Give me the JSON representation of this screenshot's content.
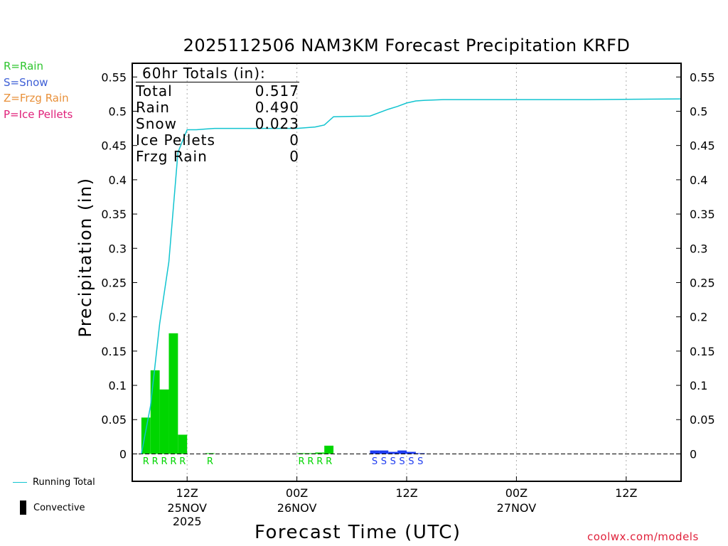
{
  "title": "2025112506 NAM3KM Forecast Precipitation KRFD",
  "credit": "coolwx.com/models",
  "ptype_legend": [
    {
      "label": "R=Rain",
      "color": "#2ec52e"
    },
    {
      "label": "S=Snow",
      "color": "#3e5fd6"
    },
    {
      "label": "Z=Frzg Rain",
      "color": "#e8903a"
    },
    {
      "label": "P=Ice Pellets",
      "color": "#e0207a"
    }
  ],
  "bottom_legend": {
    "running_total": "Running Total",
    "convective": "Convective"
  },
  "totals": {
    "header": "60hr Totals (in):",
    "rows": [
      {
        "label": "Total",
        "value": "0.517"
      },
      {
        "label": "Rain",
        "value": "0.490"
      },
      {
        "label": "Snow",
        "value": "0.023"
      },
      {
        "label": "Ice Pellets",
        "value": "0"
      },
      {
        "label": "Frzg Rain",
        "value": "0"
      }
    ]
  },
  "chart_data": {
    "type": "bar",
    "title": "2025112506 NAM3KM Forecast Precipitation KRFD",
    "xlabel": "Forecast Time (UTC)",
    "ylabel": "Precipitation (in)",
    "ylim": [
      -0.04,
      0.57
    ],
    "xlim_hours": [
      6,
      66
    ],
    "yticks": [
      0,
      0.05,
      0.1,
      0.15,
      0.2,
      0.25,
      0.3,
      0.35,
      0.4,
      0.45,
      0.5,
      0.55
    ],
    "ytick_labels": [
      "0",
      "0.05",
      "0.1",
      "0.15",
      "0.2",
      "0.25",
      "0.3",
      "0.35",
      "0.4",
      "0.45",
      "0.5",
      "0.55"
    ],
    "xticks": [
      {
        "hour": 12,
        "label": "12Z",
        "date": "25NOV",
        "year": "2025"
      },
      {
        "hour": 24,
        "label": "00Z",
        "date": "26NOV",
        "year": ""
      },
      {
        "hour": 36,
        "label": "12Z",
        "date": "",
        "year": ""
      },
      {
        "hour": 48,
        "label": "00Z",
        "date": "27NOV",
        "year": ""
      },
      {
        "hour": 60,
        "label": "12Z",
        "date": "",
        "year": ""
      }
    ],
    "colors": {
      "rain": "#00d600",
      "snow": "#1e3cf0",
      "running_total": "#11c4d0"
    },
    "hourly_bars": [
      {
        "hour": 8,
        "value": 0.053,
        "type": "rain"
      },
      {
        "hour": 9,
        "value": 0.122,
        "type": "rain"
      },
      {
        "hour": 10,
        "value": 0.094,
        "type": "rain"
      },
      {
        "hour": 11,
        "value": 0.176,
        "type": "rain"
      },
      {
        "hour": 12,
        "value": 0.028,
        "type": "rain"
      },
      {
        "hour": 15,
        "value": 0.001,
        "type": "rain"
      },
      {
        "hour": 25,
        "value": 0.001,
        "type": "rain"
      },
      {
        "hour": 26,
        "value": 0.001,
        "type": "rain"
      },
      {
        "hour": 27,
        "value": 0.002,
        "type": "rain"
      },
      {
        "hour": 28,
        "value": 0.012,
        "type": "rain"
      },
      {
        "hour": 33,
        "value": 0.005,
        "type": "snow"
      },
      {
        "hour": 34,
        "value": 0.005,
        "type": "snow"
      },
      {
        "hour": 35,
        "value": 0.003,
        "type": "snow"
      },
      {
        "hour": 36,
        "value": 0.005,
        "type": "snow"
      },
      {
        "hour": 37,
        "value": 0.003,
        "type": "snow"
      },
      {
        "hour": 38,
        "value": 0.001,
        "type": "snow"
      }
    ],
    "ptype_markers": [
      {
        "hour": 8,
        "letter": "R",
        "type": "rain"
      },
      {
        "hour": 9,
        "letter": "R",
        "type": "rain"
      },
      {
        "hour": 10,
        "letter": "R",
        "type": "rain"
      },
      {
        "hour": 11,
        "letter": "R",
        "type": "rain"
      },
      {
        "hour": 12,
        "letter": "R",
        "type": "rain"
      },
      {
        "hour": 15,
        "letter": "R",
        "type": "rain"
      },
      {
        "hour": 25,
        "letter": "R",
        "type": "rain"
      },
      {
        "hour": 26,
        "letter": "R",
        "type": "rain"
      },
      {
        "hour": 27,
        "letter": "R",
        "type": "rain"
      },
      {
        "hour": 28,
        "letter": "R",
        "type": "rain"
      },
      {
        "hour": 33,
        "letter": "S",
        "type": "snow"
      },
      {
        "hour": 34,
        "letter": "S",
        "type": "snow"
      },
      {
        "hour": 35,
        "letter": "S",
        "type": "snow"
      },
      {
        "hour": 36,
        "letter": "S",
        "type": "snow"
      },
      {
        "hour": 37,
        "letter": "S",
        "type": "snow"
      },
      {
        "hour": 38,
        "letter": "S",
        "type": "snow"
      }
    ],
    "running_total": {
      "hours": [
        7,
        8,
        9,
        10,
        11,
        12,
        13,
        14,
        15,
        20,
        24,
        26,
        27,
        28,
        32,
        34,
        35,
        36,
        37,
        38,
        40,
        45,
        50,
        56,
        66
      ],
      "values": [
        0,
        0.07,
        0.19,
        0.28,
        0.44,
        0.473,
        0.473,
        0.474,
        0.475,
        0.475,
        0.475,
        0.477,
        0.48,
        0.492,
        0.493,
        0.503,
        0.507,
        0.512,
        0.515,
        0.516,
        0.517,
        0.517,
        0.517,
        0.517,
        0.518
      ]
    }
  }
}
